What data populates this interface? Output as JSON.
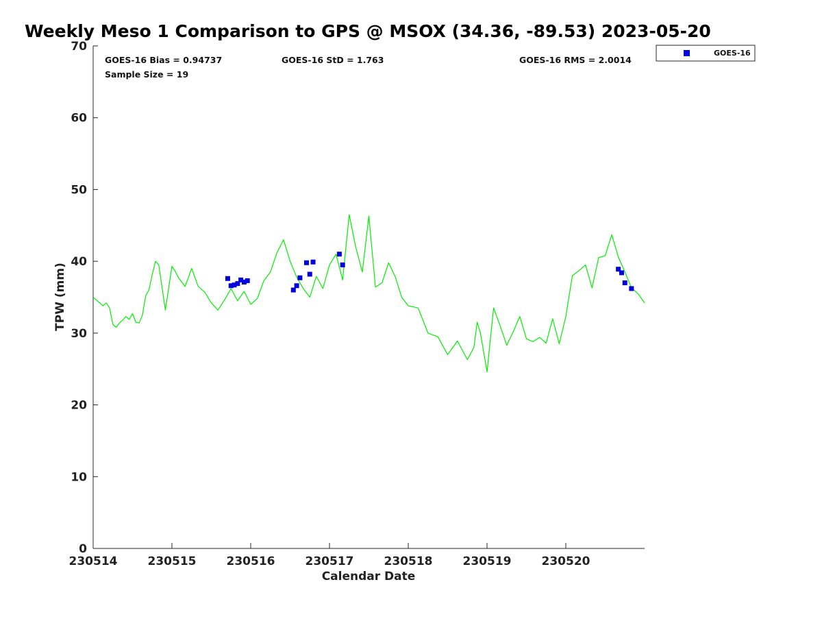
{
  "chart_data": {
    "type": "line",
    "title": "Weekly Meso 1 Comparison to GPS @ MSOX (34.36, -89.53) 2023-05-20",
    "xlabel": "Calendar Date",
    "ylabel": "TPW (mm)",
    "xlim": [
      "2023-05-14",
      "2023-05-21"
    ],
    "ylim": [
      0,
      70
    ],
    "x_tick_labels": [
      "230514",
      "230515",
      "230516",
      "230517",
      "230518",
      "230519",
      "230520"
    ],
    "y_tick_labels": [
      "0",
      "10",
      "20",
      "30",
      "40",
      "50",
      "60",
      "70"
    ],
    "grid": false,
    "legend_position": "top-right-outside",
    "stats": {
      "bias": "GOES-16 Bias = 0.94737",
      "std": "GOES-16 StD = 1.763",
      "rms": "GOES-16 RMS = 2.0014",
      "sample": "Sample Size = 19"
    },
    "series": [
      {
        "role": "gps_reference",
        "color": "#00ee00",
        "style": "line",
        "x": [
          "2023-05-14T00:00",
          "2023-05-14T03:00",
          "2023-05-14T04:00",
          "2023-05-14T05:00",
          "2023-05-14T06:00",
          "2023-05-14T07:00",
          "2023-05-14T08:00",
          "2023-05-14T09:00",
          "2023-05-14T10:00",
          "2023-05-14T11:00",
          "2023-05-14T12:00",
          "2023-05-14T13:00",
          "2023-05-14T14:00",
          "2023-05-14T15:00",
          "2023-05-14T16:00",
          "2023-05-14T17:00",
          "2023-05-14T18:00",
          "2023-05-14T19:00",
          "2023-05-14T20:00",
          "2023-05-14T22:00",
          "2023-05-15T00:00",
          "2023-05-15T01:00",
          "2023-05-15T02:00",
          "2023-05-15T04:00",
          "2023-05-15T06:00",
          "2023-05-15T08:00",
          "2023-05-15T10:00",
          "2023-05-15T12:00",
          "2023-05-15T14:00",
          "2023-05-15T16:00",
          "2023-05-15T18:00",
          "2023-05-15T20:00",
          "2023-05-15T22:00",
          "2023-05-16T00:00",
          "2023-05-16T02:00",
          "2023-05-16T04:00",
          "2023-05-16T06:00",
          "2023-05-16T08:00",
          "2023-05-16T10:00",
          "2023-05-16T12:00",
          "2023-05-16T14:00",
          "2023-05-16T16:00",
          "2023-05-16T18:00",
          "2023-05-16T20:00",
          "2023-05-16T22:00",
          "2023-05-17T00:00",
          "2023-05-17T02:00",
          "2023-05-17T04:00",
          "2023-05-17T06:00",
          "2023-05-17T08:00",
          "2023-05-17T10:00",
          "2023-05-17T12:00",
          "2023-05-17T14:00",
          "2023-05-17T16:00",
          "2023-05-17T18:00",
          "2023-05-17T20:00",
          "2023-05-17T22:00",
          "2023-05-18T00:00",
          "2023-05-18T03:00",
          "2023-05-18T06:00",
          "2023-05-18T09:00",
          "2023-05-18T12:00",
          "2023-05-18T15:00",
          "2023-05-18T18:00",
          "2023-05-18T20:00",
          "2023-05-18T21:00",
          "2023-05-18T22:00",
          "2023-05-19T00:00",
          "2023-05-19T02:00",
          "2023-05-19T04:00",
          "2023-05-19T06:00",
          "2023-05-19T08:00",
          "2023-05-19T10:00",
          "2023-05-19T12:00",
          "2023-05-19T14:00",
          "2023-05-19T16:00",
          "2023-05-19T18:00",
          "2023-05-19T20:00",
          "2023-05-19T22:00",
          "2023-05-20T00:00",
          "2023-05-20T02:00",
          "2023-05-20T04:00",
          "2023-05-20T06:00",
          "2023-05-20T08:00",
          "2023-05-20T10:00",
          "2023-05-20T12:00",
          "2023-05-20T14:00",
          "2023-05-20T16:00",
          "2023-05-20T18:00",
          "2023-05-20T20:00",
          "2023-05-20T22:00",
          "2023-05-21T00:00"
        ],
        "y": [
          35.0,
          33.8,
          34.2,
          33.5,
          31.2,
          30.8,
          31.4,
          31.8,
          32.3,
          31.9,
          32.7,
          31.5,
          31.4,
          32.5,
          35.2,
          36.0,
          38.2,
          40.0,
          39.5,
          33.2,
          39.3,
          38.6,
          37.7,
          36.5,
          39.0,
          36.5,
          35.7,
          34.2,
          33.2,
          34.6,
          36.2,
          34.5,
          35.8,
          34.0,
          34.8,
          37.3,
          38.5,
          41.2,
          43.0,
          40.0,
          37.8,
          36.2,
          35.0,
          37.9,
          36.2,
          39.5,
          41.0,
          37.4,
          46.5,
          42.0,
          38.5,
          46.3,
          36.4,
          37.0,
          39.8,
          37.9,
          35.0,
          33.8,
          33.5,
          30.0,
          29.5,
          27.0,
          28.9,
          26.3,
          28.0,
          31.5,
          30.0,
          24.6,
          33.5,
          31.0,
          28.3,
          30.2,
          32.3,
          29.2,
          28.8,
          29.4,
          28.6,
          32.0,
          28.5,
          32.3,
          38.0,
          38.7,
          39.5,
          36.3,
          40.5,
          40.8,
          43.7,
          40.6,
          38.5,
          36.3,
          35.5,
          34.2
        ]
      },
      {
        "name": "GOES-16",
        "color": "#0000dd",
        "style": "marker-square",
        "x": [
          "2023-05-15T17:00",
          "2023-05-15T18:00",
          "2023-05-15T19:00",
          "2023-05-15T20:00",
          "2023-05-15T21:00",
          "2023-05-15T22:00",
          "2023-05-15T23:00",
          "2023-05-16T13:00",
          "2023-05-16T14:00",
          "2023-05-16T15:00",
          "2023-05-16T17:00",
          "2023-05-16T18:00",
          "2023-05-16T19:00",
          "2023-05-17T03:00",
          "2023-05-17T04:00",
          "2023-05-20T16:00",
          "2023-05-20T17:00",
          "2023-05-20T18:00",
          "2023-05-20T20:00"
        ],
        "y": [
          37.6,
          36.6,
          36.7,
          36.9,
          37.4,
          37.1,
          37.3,
          36.0,
          36.6,
          37.7,
          39.8,
          38.2,
          39.9,
          41.0,
          39.5,
          38.9,
          38.4,
          37.0,
          36.2
        ]
      }
    ]
  }
}
